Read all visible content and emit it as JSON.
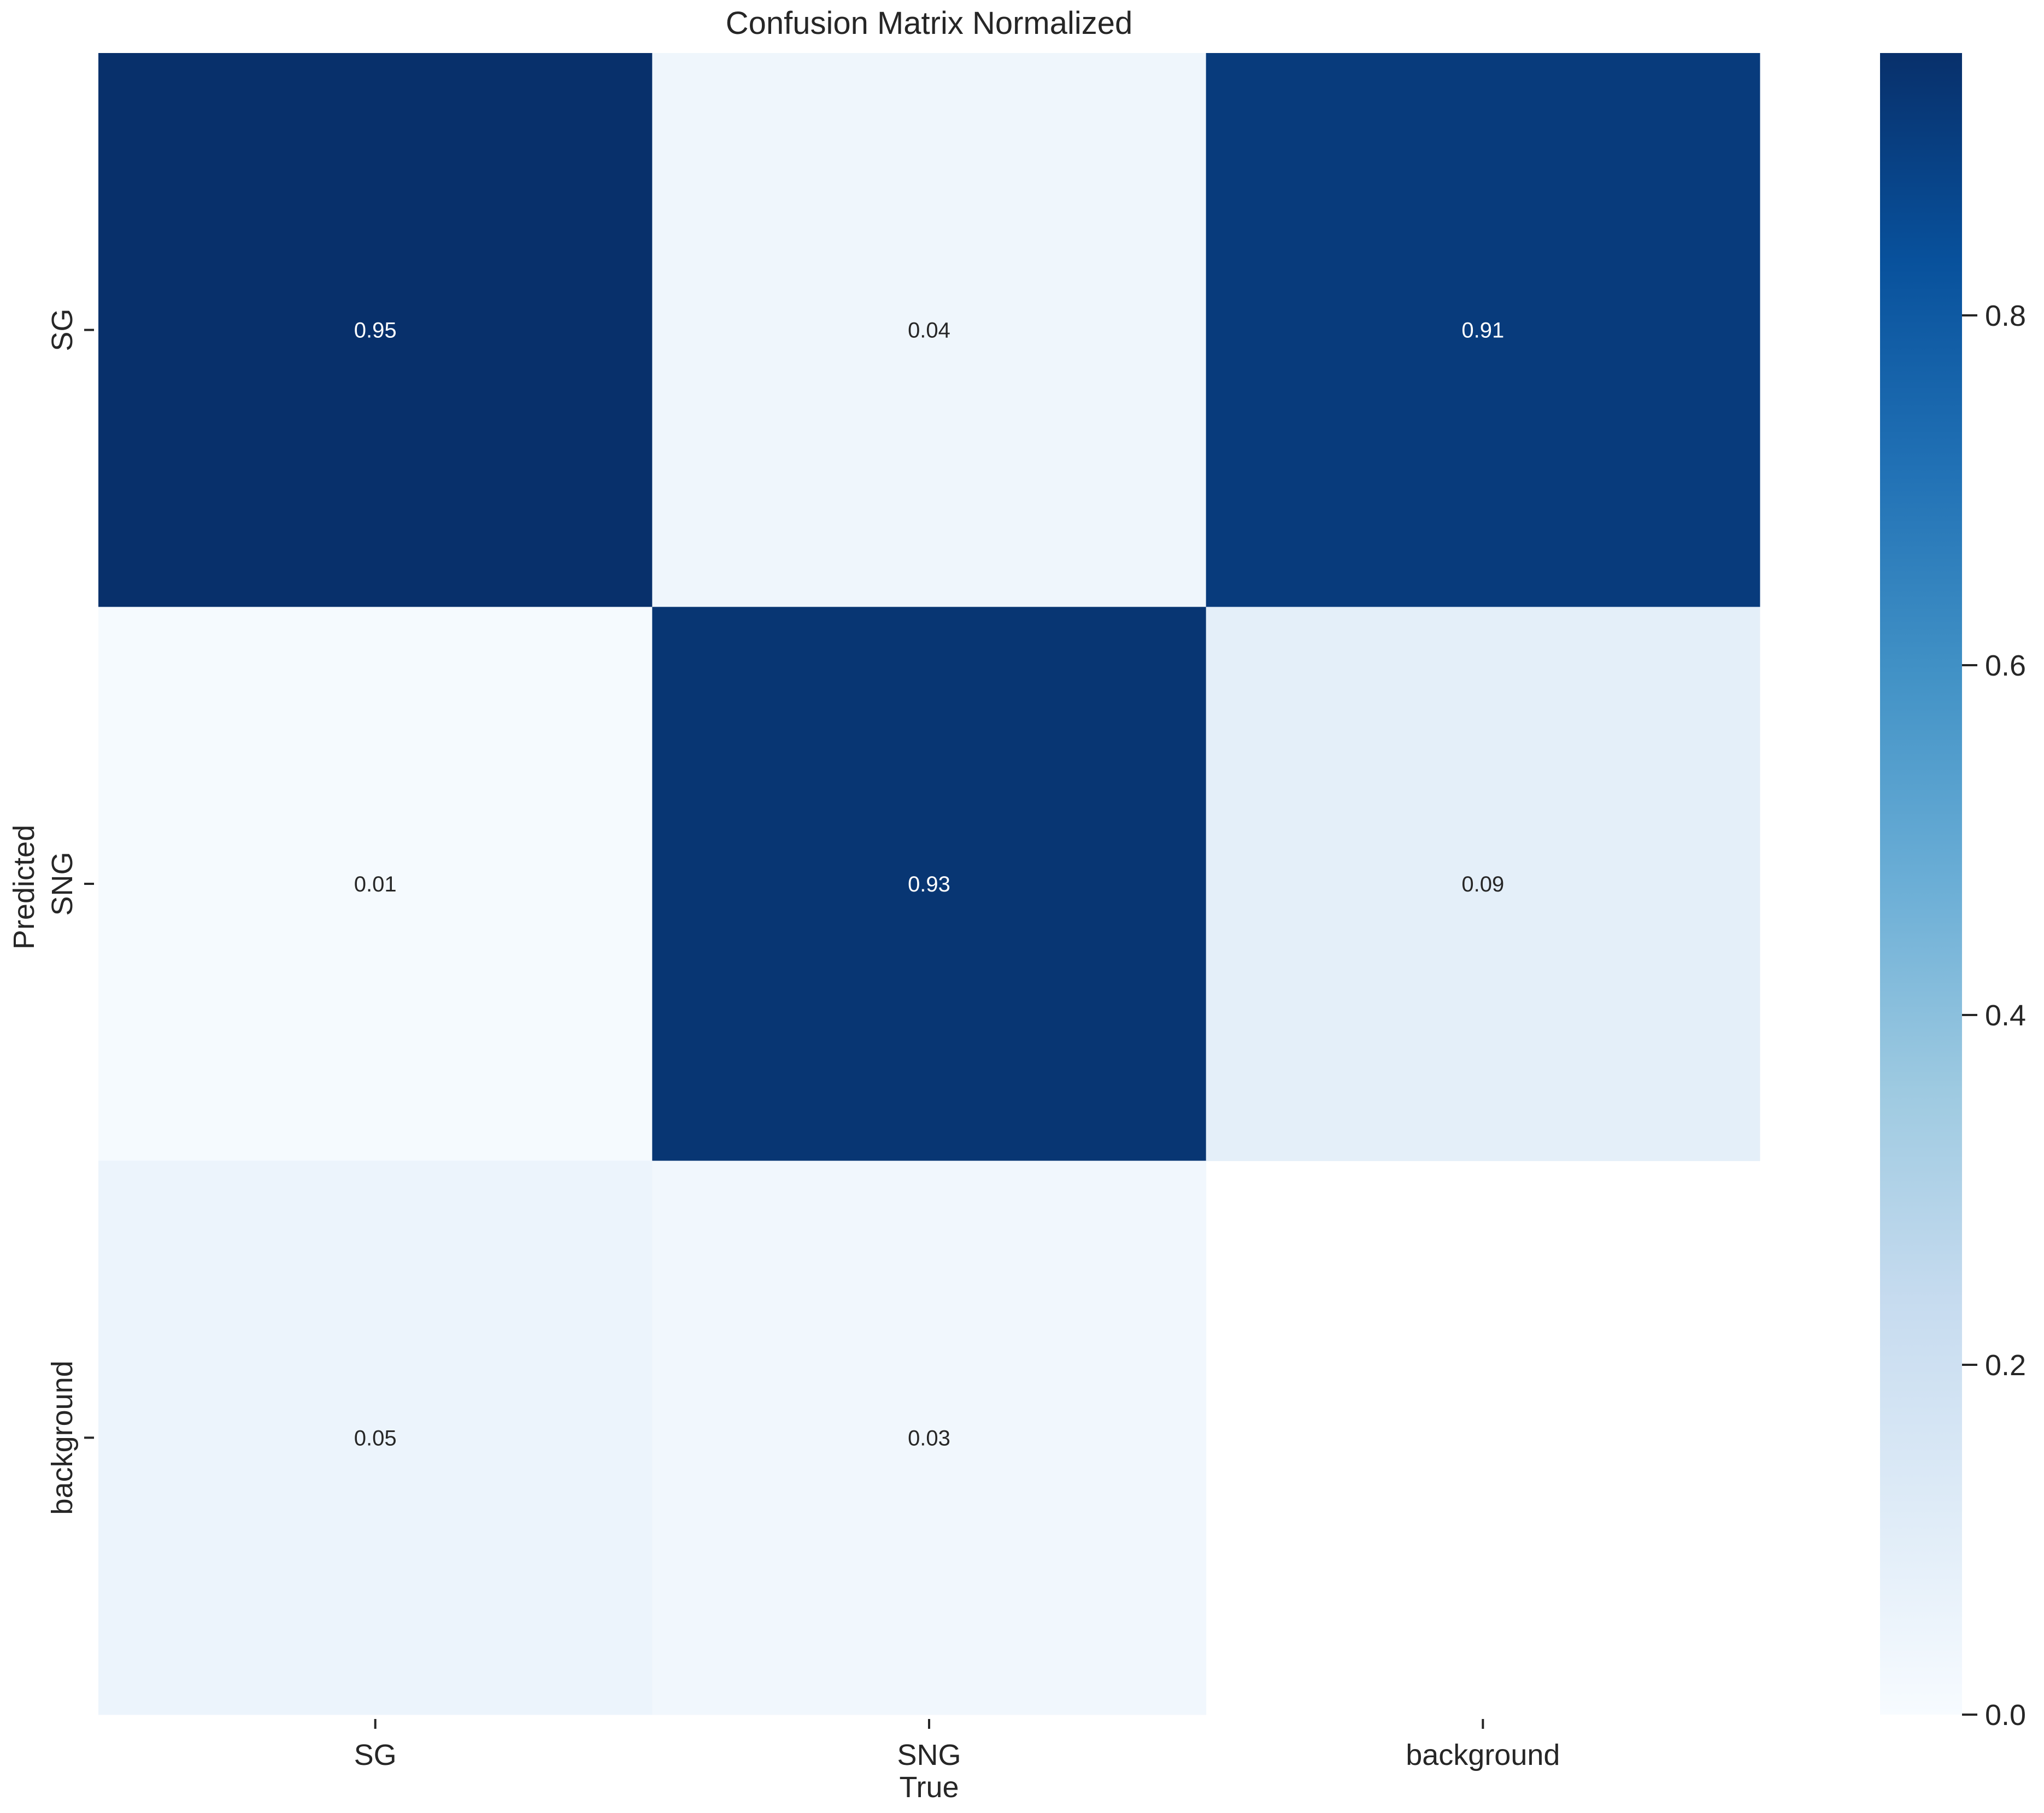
{
  "chart_data": {
    "type": "heatmap",
    "title": "Confusion Matrix Normalized",
    "xlabel": "True",
    "ylabel": "Predicted",
    "x_categories": [
      "SG",
      "SNG",
      "background"
    ],
    "y_categories": [
      "SG",
      "SNG",
      "background"
    ],
    "values": [
      [
        0.95,
        0.04,
        0.91
      ],
      [
        0.01,
        0.93,
        0.09
      ],
      [
        0.05,
        0.03,
        null
      ]
    ],
    "cell_labels": [
      [
        "0.95",
        "0.04",
        "0.91"
      ],
      [
        "0.01",
        "0.93",
        "0.09"
      ],
      [
        "0.05",
        "0.03",
        ""
      ]
    ],
    "colormap": "Blues",
    "colorbar": {
      "range": [
        0.0,
        0.95
      ],
      "ticks": [
        0.0,
        0.2,
        0.4,
        0.6,
        0.8
      ],
      "tick_labels": [
        "0.0",
        "0.2",
        "0.4",
        "0.6",
        "0.8"
      ]
    },
    "colors": {
      "low": "#f7fbff",
      "high": "#08306b",
      "annotation_dark_bg_text": "#ffffff",
      "annotation_light_bg_text": "#262626"
    }
  }
}
